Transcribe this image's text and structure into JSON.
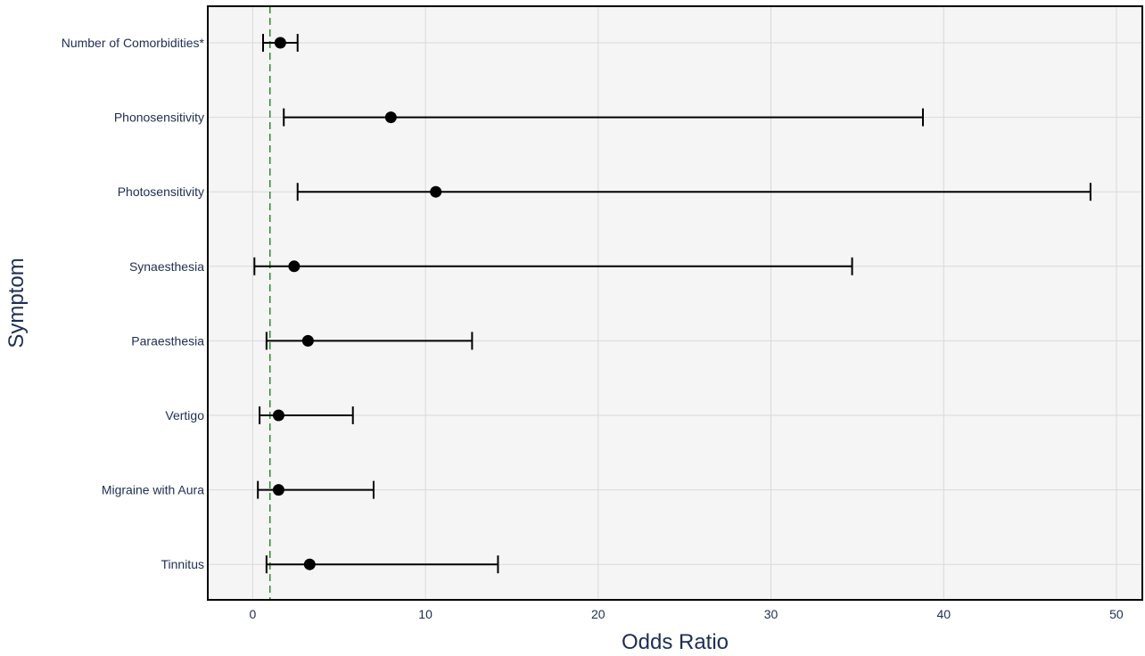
{
  "chart_data": {
    "type": "scatter",
    "xlabel": "Odds Ratio",
    "ylabel": "Symptom",
    "xlim": [
      -2.6,
      51.5
    ],
    "xticks": [
      0,
      10,
      20,
      30,
      40,
      50
    ],
    "grid": true,
    "reference_line": {
      "x": 1,
      "color": "#2e8b2e",
      "style": "dashed"
    },
    "categories": [
      "Number of Comorbidities*",
      "Phonosensitivity",
      "Photosensitivity",
      "Synaesthesia",
      "Paraesthesia",
      "Vertigo",
      "Migraine with Aura",
      "Tinnitus"
    ],
    "series": [
      {
        "odds_ratio": [
          1.6,
          8.0,
          10.6,
          2.4,
          3.2,
          1.5,
          1.5,
          3.3
        ],
        "ci_lower": [
          0.6,
          1.8,
          2.6,
          0.1,
          0.8,
          0.4,
          0.3,
          0.8
        ],
        "ci_upper": [
          2.6,
          38.8,
          48.5,
          34.7,
          12.7,
          5.8,
          7.0,
          14.2
        ]
      }
    ],
    "colors": {
      "marker": "#000000",
      "plot_bg": "#f5f5f5",
      "grid": "#d9d9d9",
      "text": "#1f2d52"
    }
  }
}
